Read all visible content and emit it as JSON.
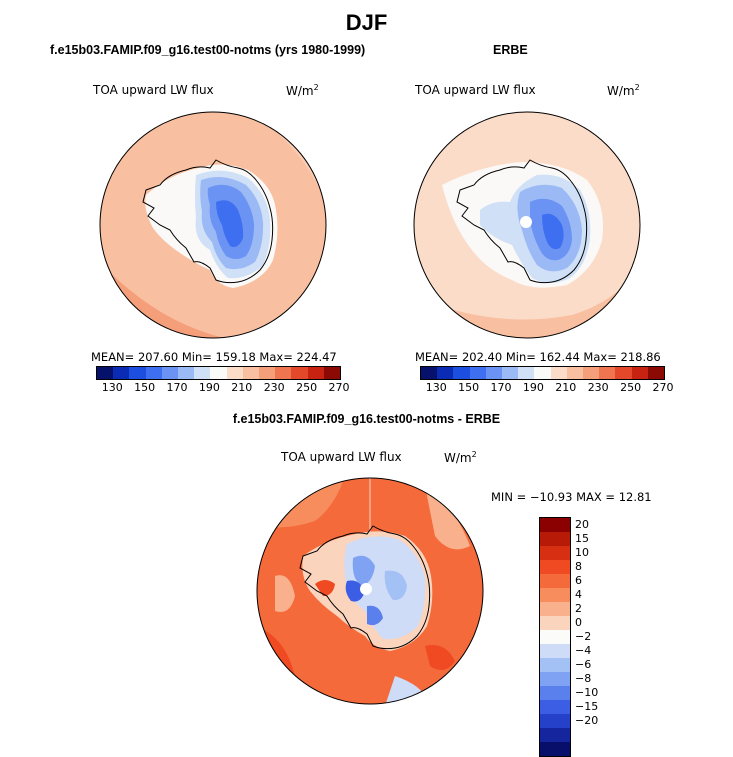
{
  "figure_title": "DJF",
  "panels": [
    {
      "title": "f.e15b03.FAMIP.f09_g16.test00-notms (yrs 1980-1999)",
      "variable": "TOA upward LW flux",
      "units": "W/m",
      "units_exp": "2",
      "stats": "MEAN= 207.60   Min= 159.18   Max= 224.47"
    },
    {
      "title": "ERBE",
      "variable": "TOA upward LW flux",
      "units": "W/m",
      "units_exp": "2",
      "stats": "MEAN= 202.40   Min= 162.44   Max= 218.86"
    },
    {
      "title": "f.e15b03.FAMIP.f09_g16.test00-notms - ERBE",
      "variable": "TOA upward LW flux",
      "units": "W/m",
      "units_exp": "2",
      "stats": "MIN = −10.93 MAX =  12.81"
    }
  ],
  "abs_colorbar": {
    "colors": [
      "#05116b",
      "#0a2cb4",
      "#1c4ee0",
      "#3d6ff0",
      "#6b93f3",
      "#9bb9f5",
      "#cfe0f7",
      "#f9fbf9",
      "#fbdcc8",
      "#f8bfa0",
      "#f59e7a",
      "#ef7450",
      "#e3482b",
      "#c82212",
      "#8b0b04"
    ],
    "ticks": [
      "130",
      "150",
      "170",
      "190",
      "210",
      "230",
      "250",
      "270"
    ]
  },
  "diff_colorbar": {
    "colors": [
      "#8b0000",
      "#b81a08",
      "#d72f12",
      "#ef4a22",
      "#f56a3a",
      "#f78d5d",
      "#f9b08c",
      "#fbd4bd",
      "#fbfbf9",
      "#cfdcf7",
      "#a4c1f5",
      "#7fa2f2",
      "#5a80ed",
      "#3b5ee4",
      "#2540c9",
      "#14259e",
      "#070f6b"
    ],
    "ticks": [
      "20",
      "15",
      "10",
      "8",
      "6",
      "4",
      "2",
      "0",
      "−2",
      "−4",
      "−6",
      "−8",
      "−10",
      "−15",
      "−20"
    ]
  }
}
